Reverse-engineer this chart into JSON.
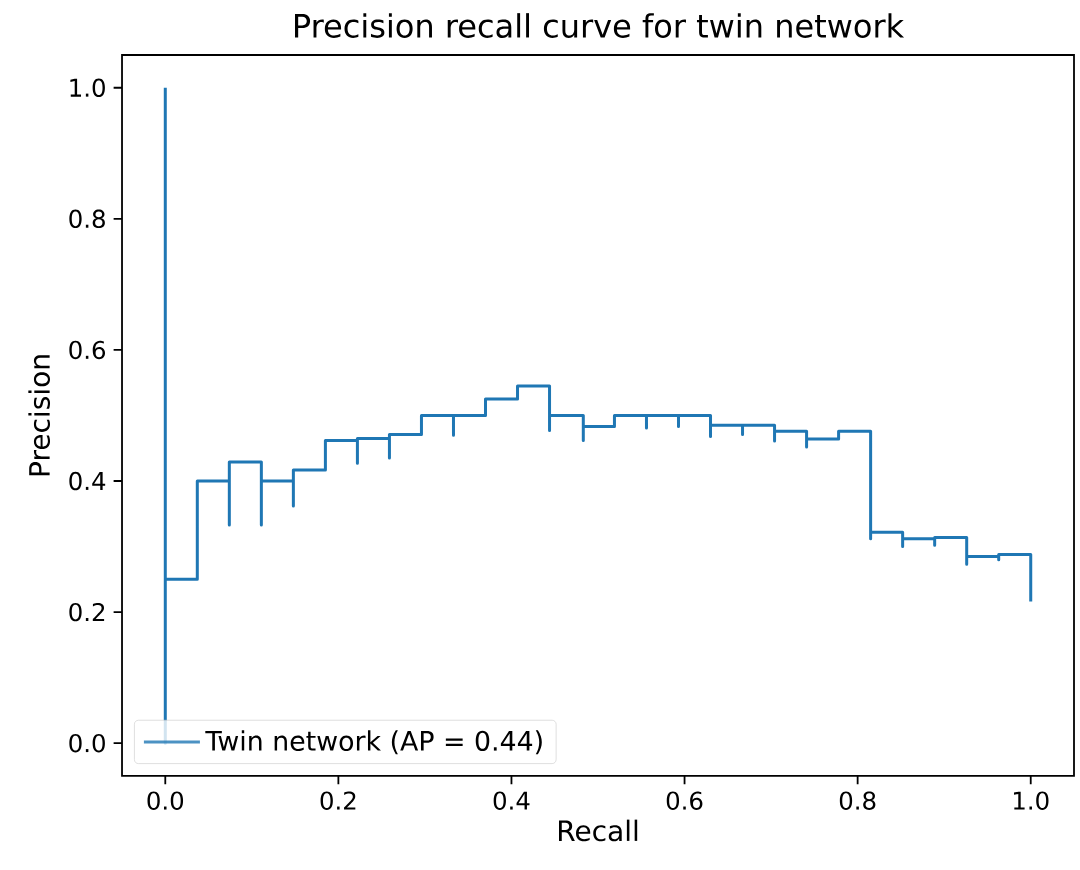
{
  "chart_data": {
    "type": "step",
    "title": "Precision recall curve for twin network",
    "xlabel": "Recall",
    "ylabel": "Precision",
    "x": [
      1.0,
      1.0,
      0.963,
      0.963,
      0.926,
      0.926,
      0.889,
      0.889,
      0.852,
      0.852,
      0.815,
      0.815,
      0.778,
      0.741,
      0.741,
      0.704,
      0.704,
      0.667,
      0.667,
      0.63,
      0.63,
      0.593,
      0.593,
      0.556,
      0.556,
      0.519,
      0.483,
      0.483,
      0.444,
      0.444,
      0.407,
      0.37,
      0.333,
      0.333,
      0.296,
      0.259,
      0.259,
      0.222,
      0.222,
      0.185,
      0.148,
      0.148,
      0.111,
      0.111,
      0.074,
      0.074,
      0.037,
      0.0,
      0.0
    ],
    "series": [
      {
        "name": "Twin network (AP = 0.44)",
        "color": "#1f77b4",
        "values": [
          0.216,
          0.288,
          0.28,
          0.285,
          0.273,
          0.314,
          0.302,
          0.312,
          0.3,
          0.322,
          0.312,
          0.476,
          0.464,
          0.452,
          0.476,
          0.461,
          0.485,
          0.471,
          0.485,
          0.468,
          0.5,
          0.483,
          0.5,
          0.481,
          0.5,
          0.483,
          0.462,
          0.5,
          0.477,
          0.545,
          0.525,
          0.5,
          0.47,
          0.5,
          0.471,
          0.435,
          0.465,
          0.427,
          0.462,
          0.417,
          0.362,
          0.4,
          0.333,
          0.429,
          0.333,
          0.4,
          0.25,
          0.0,
          1.0
        ]
      }
    ],
    "xlim": [
      -0.05,
      1.05
    ],
    "ylim": [
      -0.05,
      1.05
    ],
    "xticks": [
      {
        "value": 0,
        "label": "0.0"
      },
      {
        "value": 0.2,
        "label": "0.2"
      },
      {
        "value": 0.4,
        "label": "0.4"
      },
      {
        "value": 0.6,
        "label": "0.6"
      },
      {
        "value": 0.8,
        "label": "0.8"
      },
      {
        "value": 1,
        "label": "1.0"
      }
    ],
    "yticks": [
      {
        "value": 0,
        "label": "0.0"
      },
      {
        "value": 0.2,
        "label": "0.2"
      },
      {
        "value": 0.4,
        "label": "0.4"
      },
      {
        "value": 0.6,
        "label": "0.6"
      },
      {
        "value": 0.8,
        "label": "0.8"
      },
      {
        "value": 1,
        "label": "1.0"
      }
    ],
    "legend": "bottom left",
    "line_style": "solid"
  }
}
